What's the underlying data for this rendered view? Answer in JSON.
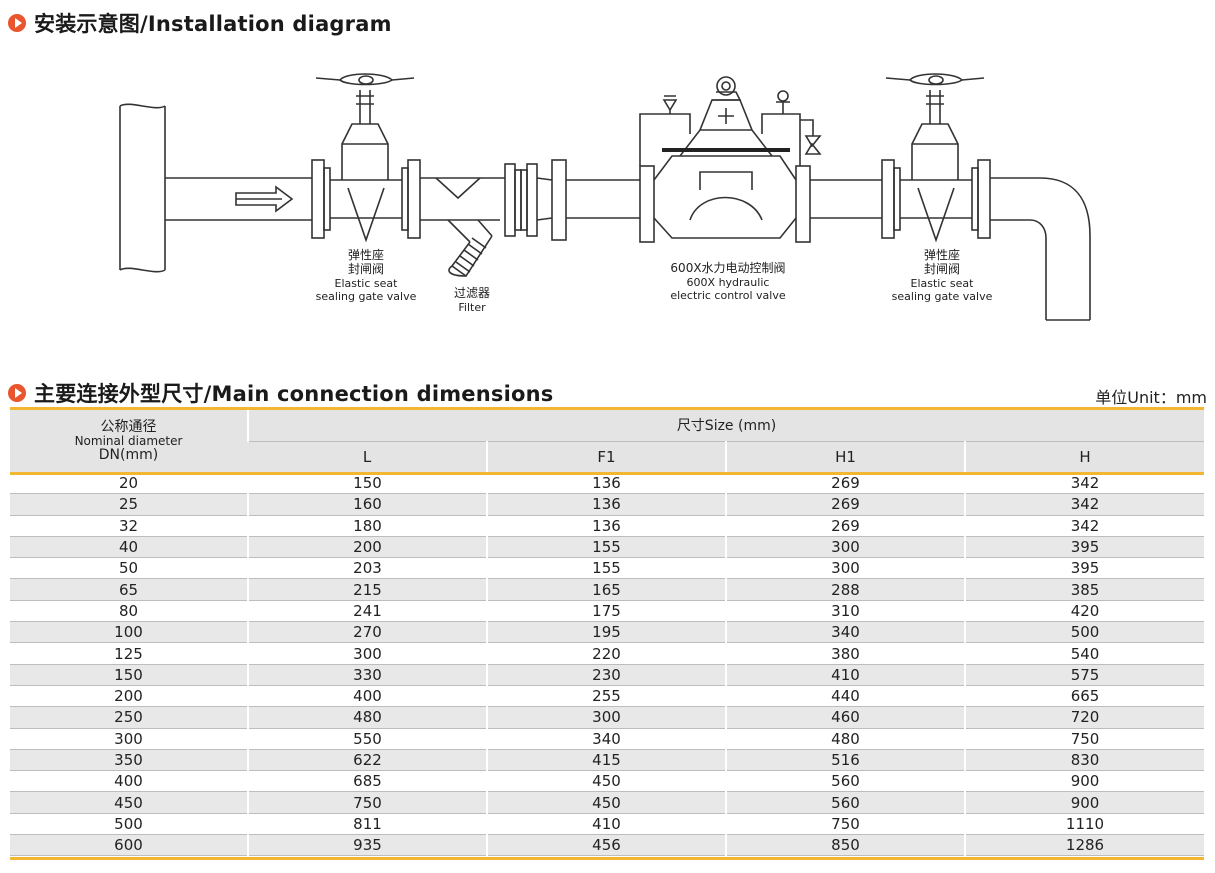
{
  "section1": {
    "title": "安装示意图/Installation diagram"
  },
  "diagram": {
    "gate_valve_left": {
      "cn_line1": "弹性座",
      "cn_line2": "封闸阀",
      "en_line1": "Elastic seat",
      "en_line2": "sealing gate valve"
    },
    "filter": {
      "cn": "过滤器",
      "en": "Filter"
    },
    "control_valve": {
      "cn": "600X水力电动控制阀",
      "en_line1": "600X hydraulic",
      "en_line2": "electric control valve"
    },
    "gate_valve_right": {
      "cn_line1": "弹性座",
      "cn_line2": "封闸阀",
      "en_line1": "Elastic seat",
      "en_line2": "sealing gate valve"
    }
  },
  "section2": {
    "title": "主要连接外型尺寸/Main connection dimensions",
    "unit": "单位Unit：mm"
  },
  "table": {
    "dn_header": {
      "cn": "公称通径",
      "en": "Nominal diameter",
      "dn": "DN(mm)"
    },
    "size_header": "尺寸Size (mm)",
    "columns": [
      "L",
      "F1",
      "H1",
      "H"
    ],
    "rows": [
      [
        "20",
        "150",
        "136",
        "269",
        "342"
      ],
      [
        "25",
        "160",
        "136",
        "269",
        "342"
      ],
      [
        "32",
        "180",
        "136",
        "269",
        "342"
      ],
      [
        "40",
        "200",
        "155",
        "300",
        "395"
      ],
      [
        "50",
        "203",
        "155",
        "300",
        "395"
      ],
      [
        "65",
        "215",
        "165",
        "288",
        "385"
      ],
      [
        "80",
        "241",
        "175",
        "310",
        "420"
      ],
      [
        "100",
        "270",
        "195",
        "340",
        "500"
      ],
      [
        "125",
        "300",
        "220",
        "380",
        "540"
      ],
      [
        "150",
        "330",
        "230",
        "410",
        "575"
      ],
      [
        "200",
        "400",
        "255",
        "440",
        "665"
      ],
      [
        "250",
        "480",
        "300",
        "460",
        "720"
      ],
      [
        "300",
        "550",
        "340",
        "480",
        "750"
      ],
      [
        "350",
        "622",
        "415",
        "516",
        "830"
      ],
      [
        "400",
        "685",
        "450",
        "560",
        "900"
      ],
      [
        "450",
        "750",
        "450",
        "560",
        "900"
      ],
      [
        "500",
        "811",
        "410",
        "750",
        "1110"
      ],
      [
        "600",
        "935",
        "456",
        "850",
        "1286"
      ]
    ]
  }
}
